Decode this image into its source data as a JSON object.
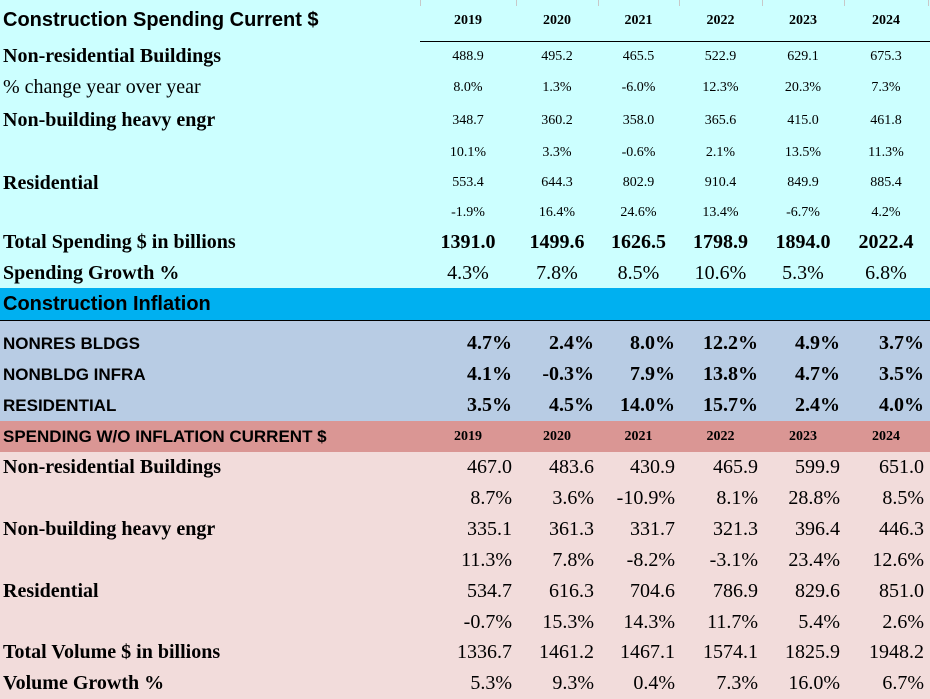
{
  "years": [
    "2019",
    "2020",
    "2021",
    "2022",
    "2023",
    "2024"
  ],
  "spending": {
    "title": "Construction Spending Current $",
    "rows": [
      {
        "label": "Non-residential Buildings",
        "values": [
          "488.9",
          "495.2",
          "465.5",
          "522.9",
          "629.1",
          "675.3"
        ]
      },
      {
        "label": "% change year over year",
        "values": [
          "8.0%",
          "1.3%",
          "-6.0%",
          "12.3%",
          "20.3%",
          "7.3%"
        ]
      },
      {
        "label": "Non-building heavy engr",
        "values": [
          "348.7",
          "360.2",
          "358.0",
          "365.6",
          "415.0",
          "461.8"
        ]
      },
      {
        "label": "",
        "values": [
          "10.1%",
          "3.3%",
          "-0.6%",
          "2.1%",
          "13.5%",
          "11.3%"
        ]
      },
      {
        "label": "Residential",
        "values": [
          "553.4",
          "644.3",
          "802.9",
          "910.4",
          "849.9",
          "885.4"
        ]
      },
      {
        "label": "",
        "values": [
          "-1.9%",
          "16.4%",
          "24.6%",
          "13.4%",
          "-6.7%",
          "4.2%"
        ]
      }
    ],
    "total": {
      "label": "Total Spending $ in billions",
      "values": [
        "1391.0",
        "1499.6",
        "1626.5",
        "1798.9",
        "1894.0",
        "2022.4"
      ]
    },
    "growth": {
      "label": "Spending Growth %",
      "values": [
        "4.3%",
        "7.8%",
        "8.5%",
        "10.6%",
        "5.3%",
        "6.8%"
      ]
    }
  },
  "inflation": {
    "title": "Construction Inflation",
    "rows": [
      {
        "label": "NONRES BLDGS",
        "values": [
          "4.7%",
          "2.4%",
          "8.0%",
          "12.2%",
          "4.9%",
          "3.7%"
        ]
      },
      {
        "label": "NONBLDG INFRA",
        "values": [
          "4.1%",
          "-0.3%",
          "7.9%",
          "13.8%",
          "4.7%",
          "3.5%"
        ]
      },
      {
        "label": "RESIDENTIAL",
        "values": [
          "3.5%",
          "4.5%",
          "14.0%",
          "15.7%",
          "2.4%",
          "4.0%"
        ]
      }
    ]
  },
  "volume": {
    "title": "SPENDING W/O INFLATION CURRENT $",
    "rows": [
      {
        "label": "Non-residential Buildings",
        "values": [
          "467.0",
          "483.6",
          "430.9",
          "465.9",
          "599.9",
          "651.0"
        ]
      },
      {
        "label": "",
        "values": [
          "8.7%",
          "3.6%",
          "-10.9%",
          "8.1%",
          "28.8%",
          "8.5%"
        ]
      },
      {
        "label": "Non-building heavy engr",
        "values": [
          "335.1",
          "361.3",
          "331.7",
          "321.3",
          "396.4",
          "446.3"
        ]
      },
      {
        "label": "",
        "values": [
          "11.3%",
          "7.8%",
          "-8.2%",
          "-3.1%",
          "23.4%",
          "12.6%"
        ]
      },
      {
        "label": "Residential",
        "values": [
          "534.7",
          "616.3",
          "704.6",
          "786.9",
          "829.6",
          "851.0"
        ]
      },
      {
        "label": "",
        "values": [
          "-0.7%",
          "15.3%",
          "14.3%",
          "11.7%",
          "5.4%",
          "2.6%"
        ]
      }
    ],
    "total": {
      "label": "Total Volume $ in billions",
      "values": [
        "1336.7",
        "1461.2",
        "1467.1",
        "1574.1",
        "1825.9",
        "1948.2"
      ]
    },
    "growth": {
      "label": "Volume Growth %",
      "values": [
        "5.3%",
        "9.3%",
        "0.4%",
        "7.3%",
        "16.0%",
        "6.7%"
      ]
    }
  },
  "colors": {
    "cyan": "#ccffff",
    "inflation_header": "#00b0f0",
    "inflation_rows": "#b8cce4",
    "volume_header": "#da9694",
    "volume_rows": "#f2dcdb"
  }
}
